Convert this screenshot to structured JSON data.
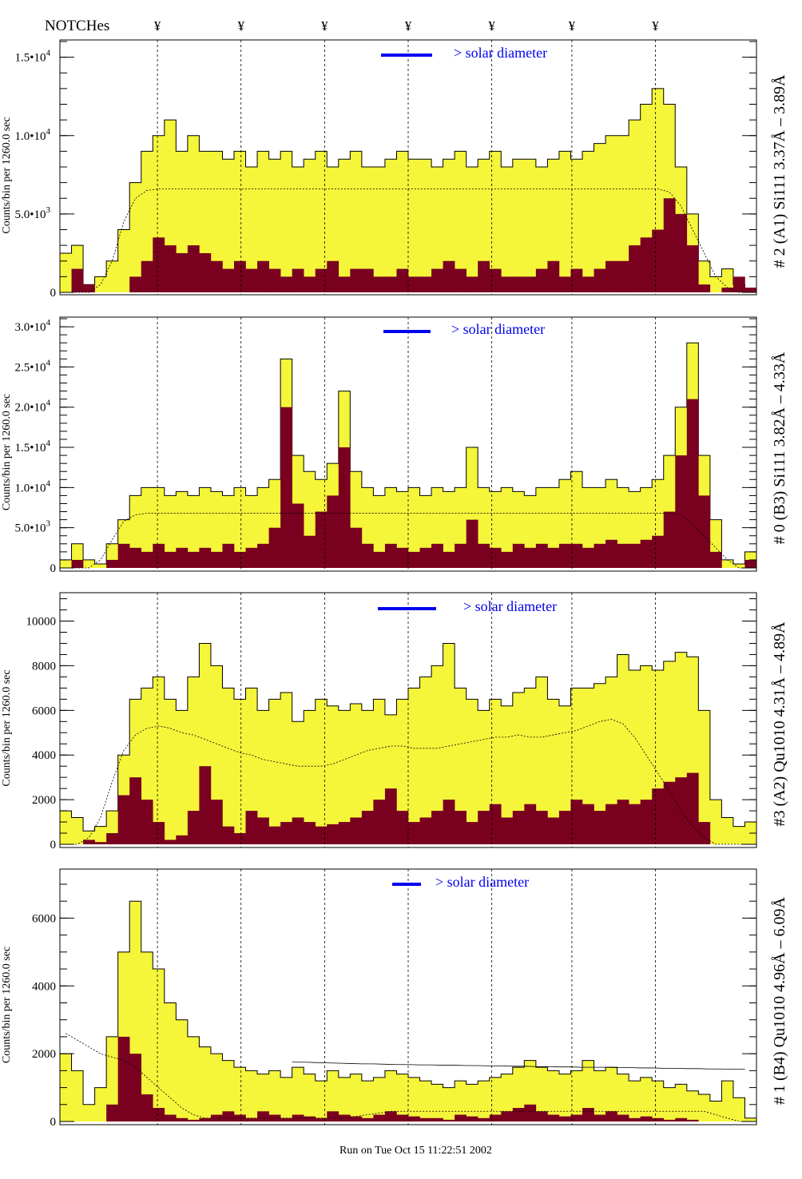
{
  "header": {
    "notches_label": "NOTCHes",
    "notch_symbol": "¥",
    "notch_positions": [
      14,
      26,
      38,
      50,
      62,
      73.5,
      85.5
    ]
  },
  "footer": {
    "run_text": "Run on Tue Oct 15 11:22:51 2002"
  },
  "colors": {
    "yellow": "#f5f53a",
    "red": "#7a0020",
    "legend": "#0000ee"
  },
  "chart_data": [
    {
      "type": "bar",
      "title": "# 2 (A1) Si111  3.37Å – 3.89Å",
      "ylabel": "Counts/bin per   1260.0 sec",
      "legend": "> solar diameter",
      "ylim": [
        0,
        16000
      ],
      "yticks": [
        {
          "value": 0,
          "label": "0",
          "exp": ""
        },
        {
          "value": 5000,
          "label": "5.0•10",
          "exp": "3"
        },
        {
          "value": 10000,
          "label": "1.0•10",
          "exp": "4"
        },
        {
          "value": 15000,
          "label": "1.5•10",
          "exp": "4"
        }
      ],
      "minor_step": 1000,
      "series": [
        {
          "name": "total",
          "values": [
            2500,
            3000,
            500,
            1000,
            2000,
            4000,
            7000,
            9000,
            10000,
            11000,
            9000,
            10000,
            9000,
            9000,
            8500,
            9000,
            8000,
            9000,
            8500,
            9000,
            8000,
            8500,
            9000,
            8000,
            8500,
            9000,
            8000,
            8000,
            8500,
            9000,
            8500,
            8500,
            8000,
            8500,
            9000,
            8000,
            8500,
            9000,
            8000,
            8500,
            8500,
            8000,
            8500,
            9000,
            8500,
            9000,
            9500,
            10000,
            10000,
            11000,
            12000,
            13000,
            12000,
            8000,
            5000,
            2000,
            1000,
            1500,
            500,
            200
          ]
        },
        {
          "name": "component",
          "values": [
            0,
            1500,
            500,
            0,
            0,
            0,
            1000,
            2000,
            3500,
            3000,
            2500,
            3000,
            2500,
            2000,
            1500,
            2000,
            1500,
            2000,
            1500,
            1000,
            1500,
            1000,
            1500,
            2000,
            1000,
            1500,
            1500,
            1000,
            1000,
            1500,
            1000,
            1000,
            1500,
            2000,
            1500,
            1000,
            2000,
            1500,
            1000,
            1000,
            1000,
            1500,
            2000,
            1000,
            1500,
            1000,
            1500,
            2000,
            2000,
            3000,
            3500,
            4000,
            6000,
            5000,
            3000,
            500,
            0,
            300,
            1000,
            300
          ]
        },
        {
          "name": "model",
          "values": [
            0,
            0,
            0,
            500,
            2000,
            4500,
            6000,
            6500,
            6600,
            6600,
            6600,
            6600,
            6600,
            6600,
            6600,
            6600,
            6600,
            6600,
            6600,
            6600,
            6600,
            6600,
            6600,
            6600,
            6600,
            6600,
            6600,
            6600,
            6600,
            6600,
            6600,
            6600,
            6600,
            6600,
            6600,
            6600,
            6600,
            6600,
            6600,
            6600,
            6600,
            6600,
            6600,
            6600,
            6600,
            6600,
            6600,
            6600,
            6600,
            6600,
            6600,
            6600,
            6400,
            5500,
            4000,
            2500,
            1000,
            300,
            0,
            0
          ]
        }
      ]
    },
    {
      "type": "bar",
      "title": "# 0 (B3) Si111  3.82Å – 4.33Å",
      "ylabel": "Counts/bin per   1260.0 sec",
      "legend": "> solar diameter",
      "ylim": [
        0,
        31000
      ],
      "yticks": [
        {
          "value": 0,
          "label": "0",
          "exp": ""
        },
        {
          "value": 5000,
          "label": "5.0•10",
          "exp": "3"
        },
        {
          "value": 10000,
          "label": "1.0•10",
          "exp": "4"
        },
        {
          "value": 15000,
          "label": "1.5•10",
          "exp": "4"
        },
        {
          "value": 20000,
          "label": "2.0•10",
          "exp": "4"
        },
        {
          "value": 25000,
          "label": "2.5•10",
          "exp": "4"
        },
        {
          "value": 30000,
          "label": "3.0•10",
          "exp": "4"
        }
      ],
      "minor_step": 1000,
      "series": [
        {
          "name": "total",
          "values": [
            1000,
            3000,
            1000,
            500,
            3000,
            6000,
            9000,
            10000,
            10000,
            9000,
            9500,
            9000,
            10000,
            9500,
            9000,
            10000,
            9000,
            10000,
            11000,
            26000,
            14000,
            12000,
            11000,
            13000,
            22000,
            12000,
            10000,
            9000,
            10000,
            9500,
            10000,
            9000,
            10000,
            9500,
            10000,
            15000,
            10000,
            9500,
            10000,
            9500,
            9000,
            10000,
            10000,
            11000,
            12000,
            10000,
            10000,
            11000,
            10000,
            9500,
            10000,
            11000,
            14000,
            20000,
            28000,
            14000,
            6000,
            1000,
            500,
            2000
          ]
        },
        {
          "name": "component",
          "values": [
            0,
            1000,
            0,
            0,
            1000,
            3000,
            2500,
            2000,
            3000,
            2000,
            2500,
            2000,
            2500,
            2000,
            3000,
            2000,
            2500,
            3000,
            5000,
            20000,
            8000,
            4000,
            7000,
            9000,
            15000,
            5000,
            3000,
            2000,
            3000,
            2500,
            2000,
            2500,
            3000,
            2000,
            3000,
            6000,
            3000,
            2500,
            2000,
            3000,
            2500,
            3000,
            2500,
            3000,
            3000,
            2500,
            3000,
            3500,
            3000,
            3000,
            3500,
            4000,
            7000,
            14000,
            21000,
            9000,
            2000,
            0,
            0,
            1000
          ]
        },
        {
          "name": "model",
          "values": [
            0,
            0,
            0,
            1000,
            3500,
            5800,
            6600,
            6800,
            6800,
            6800,
            6800,
            6800,
            6800,
            6800,
            6800,
            6800,
            6800,
            6800,
            6800,
            6800,
            6800,
            6800,
            6800,
            6800,
            6800,
            6800,
            6800,
            6800,
            6800,
            6800,
            6800,
            6800,
            6800,
            6800,
            6800,
            6800,
            6800,
            6800,
            6800,
            6800,
            6800,
            6800,
            6800,
            6800,
            6800,
            6800,
            6800,
            6800,
            6800,
            6800,
            6800,
            6800,
            6800,
            6600,
            5500,
            4000,
            2500,
            1000,
            0,
            0
          ]
        }
      ]
    },
    {
      "type": "bar",
      "title": "#3 (A2) Qu1010  4.31Å – 4.89Å",
      "ylabel": "Counts/bin per   1260.0 sec",
      "legend": "> solar diameter",
      "ylim": [
        0,
        11200
      ],
      "yticks": [
        {
          "value": 0,
          "label": "0",
          "exp": ""
        },
        {
          "value": 2000,
          "label": "2000",
          "exp": ""
        },
        {
          "value": 4000,
          "label": "4000",
          "exp": ""
        },
        {
          "value": 6000,
          "label": "6000",
          "exp": ""
        },
        {
          "value": 8000,
          "label": "8000",
          "exp": ""
        },
        {
          "value": 10000,
          "label": "10000",
          "exp": ""
        }
      ],
      "minor_step": 500,
      "series": [
        {
          "name": "total",
          "values": [
            1500,
            1200,
            600,
            800,
            1500,
            4000,
            6500,
            7000,
            7500,
            6500,
            6000,
            7500,
            9000,
            8000,
            7000,
            6500,
            7000,
            6000,
            6500,
            6800,
            5500,
            6000,
            6500,
            6200,
            6000,
            6300,
            6000,
            6500,
            5800,
            6500,
            7000,
            7500,
            8000,
            9000,
            7000,
            6500,
            6000,
            6500,
            6200,
            6800,
            7000,
            7500,
            6500,
            6200,
            7000,
            7000,
            7200,
            7500,
            8500,
            7800,
            8000,
            7800,
            8200,
            8600,
            8400,
            6000,
            2000,
            1200,
            800,
            1000
          ]
        },
        {
          "name": "component",
          "values": [
            0,
            0,
            200,
            100,
            500,
            2200,
            3000,
            2000,
            1000,
            200,
            400,
            1500,
            3500,
            2000,
            800,
            500,
            1500,
            1200,
            800,
            1000,
            1200,
            1000,
            800,
            900,
            1000,
            1200,
            1500,
            2000,
            2500,
            1500,
            1000,
            1200,
            1500,
            2000,
            1500,
            1000,
            1500,
            1800,
            1200,
            1500,
            1800,
            1500,
            1200,
            1500,
            2000,
            1800,
            1500,
            1800,
            2000,
            1800,
            2000,
            2500,
            2800,
            3000,
            3200,
            1000,
            0,
            0,
            0,
            0
          ]
        },
        {
          "name": "model",
          "values": [
            0,
            0,
            300,
            1200,
            2800,
            4200,
            4900,
            5200,
            5300,
            5200,
            5000,
            4900,
            4700,
            4500,
            4300,
            4100,
            4000,
            3800,
            3700,
            3600,
            3500,
            3500,
            3500,
            3600,
            3800,
            4000,
            4200,
            4300,
            4400,
            4400,
            4300,
            4300,
            4300,
            4400,
            4500,
            4600,
            4700,
            4800,
            4800,
            4900,
            4800,
            4800,
            4900,
            5000,
            5100,
            5300,
            5500,
            5600,
            5400,
            4800,
            4000,
            3200,
            2400,
            1500,
            800,
            300,
            0,
            0,
            0,
            0
          ]
        }
      ]
    },
    {
      "type": "bar",
      "title": "# 1 (B4) Qu1010 4.96Å – 6.09Å",
      "ylabel": "Counts/bin per   1260.0 sec",
      "legend": "> solar diameter",
      "ylim": [
        0,
        7400
      ],
      "yticks": [
        {
          "value": 0,
          "label": "0",
          "exp": ""
        },
        {
          "value": 2000,
          "label": "2000",
          "exp": ""
        },
        {
          "value": 4000,
          "label": "4000",
          "exp": ""
        },
        {
          "value": 6000,
          "label": "6000",
          "exp": ""
        }
      ],
      "minor_step": 500,
      "series": [
        {
          "name": "total",
          "values": [
            2000,
            1500,
            500,
            1000,
            2500,
            5000,
            6500,
            5000,
            4500,
            3500,
            3000,
            2500,
            2200,
            2000,
            1800,
            1600,
            1500,
            1400,
            1500,
            1300,
            1600,
            1400,
            1200,
            1500,
            1300,
            1400,
            1200,
            1300,
            1500,
            1400,
            1300,
            1200,
            1100,
            1000,
            1200,
            1100,
            1200,
            1300,
            1400,
            1600,
            1800,
            1600,
            1500,
            1400,
            1500,
            1800,
            1500,
            1600,
            1400,
            1200,
            1300,
            1200,
            1000,
            1100,
            900,
            800,
            600,
            1200,
            700,
            100
          ]
        },
        {
          "name": "component",
          "values": [
            0,
            0,
            0,
            0,
            500,
            2500,
            2000,
            800,
            400,
            200,
            100,
            50,
            100,
            200,
            300,
            200,
            100,
            300,
            200,
            100,
            200,
            150,
            100,
            300,
            200,
            150,
            100,
            200,
            300,
            200,
            150,
            100,
            100,
            50,
            200,
            150,
            100,
            200,
            300,
            400,
            500,
            300,
            200,
            150,
            200,
            400,
            200,
            300,
            200,
            100,
            150,
            100,
            50,
            100,
            50,
            0,
            0,
            0,
            0,
            0
          ]
        },
        {
          "name": "model",
          "values": [
            2600,
            2400,
            2200,
            2000,
            1900,
            1800,
            1600,
            1300,
            1000,
            700,
            400,
            200,
            100,
            100,
            100,
            100,
            100,
            100,
            100,
            100,
            100,
            100,
            100,
            100,
            100,
            150,
            200,
            250,
            300,
            300,
            300,
            300,
            300,
            300,
            300,
            300,
            300,
            300,
            300,
            300,
            300,
            300,
            300,
            300,
            300,
            300,
            300,
            300,
            300,
            300,
            300,
            300,
            300,
            300,
            300,
            300,
            200,
            100,
            0,
            0
          ]
        },
        {
          "name": "reference",
          "values": [
            0,
            0,
            0,
            0,
            0,
            0,
            0,
            0,
            0,
            0,
            0,
            0,
            0,
            0,
            0,
            0,
            0,
            0,
            0,
            0,
            1750,
            1750,
            1740,
            1730,
            1720,
            1710,
            1700,
            1700,
            1690,
            1680,
            1680,
            1670,
            1670,
            1660,
            1660,
            1650,
            1650,
            1640,
            1640,
            1630,
            1630,
            1620,
            1620,
            1610,
            1610,
            1600,
            1600,
            1600,
            1590,
            1590,
            1580,
            1580,
            1570,
            1570,
            1560,
            1560,
            1550,
            1550,
            1540,
            1540
          ]
        }
      ]
    }
  ]
}
